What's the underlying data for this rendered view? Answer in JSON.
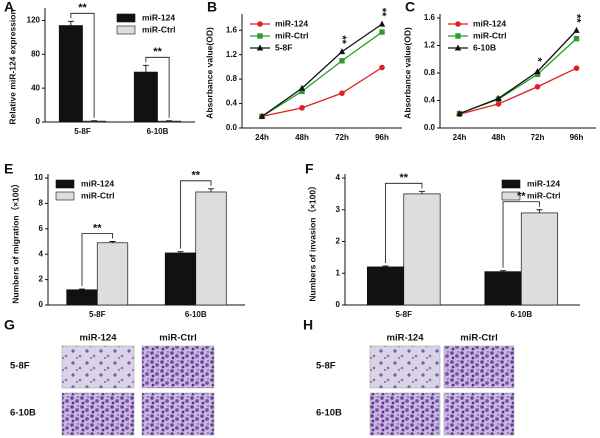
{
  "chart_data": [
    {
      "type": "bar",
      "label": "A",
      "ylabel": "Relative miR-124 expression",
      "categories": [
        "5-8F",
        "6-10B"
      ],
      "series": [
        {
          "name": "miR-124",
          "color": "#111111",
          "values": [
            114,
            59
          ],
          "errors": [
            5,
            8
          ]
        },
        {
          "name": "miR-Ctrl",
          "color": "#dddddd",
          "values": [
            1,
            1
          ],
          "errors": [
            0.5,
            0.5
          ]
        }
      ],
      "ylim": [
        0,
        130
      ],
      "yticks": [
        0,
        40,
        80,
        120
      ],
      "legend": "upper right",
      "annotations": [
        {
          "text": "**",
          "x": "5-8F"
        },
        {
          "text": "**",
          "x": "6-10B"
        }
      ]
    },
    {
      "type": "line",
      "label": "B",
      "ylabel": "Absorbance value(OD)",
      "categories": [
        "24h",
        "48h",
        "72h",
        "96h"
      ],
      "series": [
        {
          "name": "miR-124",
          "color": "#e02020",
          "marker": "circle",
          "values": [
            0.19,
            0.33,
            0.57,
            0.99
          ]
        },
        {
          "name": "miR-Ctrl",
          "color": "#2a9d2a",
          "marker": "square",
          "values": [
            0.19,
            0.6,
            1.1,
            1.57
          ]
        },
        {
          "name": "5-8F",
          "color": "#111111",
          "marker": "triangle",
          "values": [
            0.19,
            0.65,
            1.25,
            1.7
          ]
        }
      ],
      "ylim": [
        0,
        1.8
      ],
      "yticks": [
        {
          "value": 0,
          "label": "0.0"
        },
        0.4,
        0.8,
        1.2,
        1.6
      ],
      "legend": "upper left",
      "annotations": [
        {
          "text": "**",
          "x": "72h"
        },
        {
          "text": "**",
          "x": "96h"
        }
      ]
    },
    {
      "type": "line",
      "label": "C",
      "ylabel": "Absorbance value(OD)",
      "categories": [
        "24h",
        "48h",
        "72h",
        "96h"
      ],
      "series": [
        {
          "name": "miR-124",
          "color": "#e02020",
          "marker": "circle",
          "values": [
            0.2,
            0.35,
            0.6,
            0.87
          ]
        },
        {
          "name": "miR-Ctrl",
          "color": "#2a9d2a",
          "marker": "square",
          "values": [
            0.21,
            0.42,
            0.78,
            1.3
          ]
        },
        {
          "name": "6-10B",
          "color": "#111111",
          "marker": "triangle",
          "values": [
            0.21,
            0.43,
            0.82,
            1.42
          ]
        }
      ],
      "ylim": [
        0,
        1.6
      ],
      "yticks": [
        {
          "value": 0,
          "label": "0.0"
        },
        0.4,
        0.8,
        1.2,
        1.6
      ],
      "legend": "upper left",
      "annotations": [
        {
          "text": "*",
          "x": "72h"
        },
        {
          "text": "**",
          "x": "96h"
        }
      ]
    },
    {
      "type": "bar",
      "label": "E",
      "ylabel": "Numbers of migration（×100）",
      "categories": [
        "5-8F",
        "6-10B"
      ],
      "series": [
        {
          "name": "miR-124",
          "color": "#111111",
          "values": [
            1.2,
            4.1
          ],
          "errors": [
            0.05,
            0.1
          ]
        },
        {
          "name": "miR-Ctrl",
          "color": "#dddddd",
          "values": [
            4.9,
            8.9
          ],
          "errors": [
            0.1,
            0.25
          ]
        }
      ],
      "ylim": [
        0,
        10
      ],
      "yticks": [
        0,
        2,
        4,
        6,
        8,
        10
      ],
      "legend": "upper left",
      "annotations": [
        {
          "text": "**",
          "x": "5-8F"
        },
        {
          "text": "**",
          "x": "6-10B"
        }
      ]
    },
    {
      "type": "bar",
      "label": "F",
      "ylabel": "Numbers of invasion（×100）",
      "categories": [
        "5-8F",
        "6-10B"
      ],
      "series": [
        {
          "name": "miR-124",
          "color": "#111111",
          "values": [
            1.2,
            1.05
          ],
          "errors": [
            0.03,
            0.03
          ]
        },
        {
          "name": "miR-Ctrl",
          "color": "#dddddd",
          "values": [
            3.5,
            2.9
          ],
          "errors": [
            0.08,
            0.1
          ]
        }
      ],
      "ylim": [
        0,
        4
      ],
      "yticks": [
        0,
        1,
        2,
        3,
        4
      ],
      "legend": "upper right",
      "annotations": [
        {
          "text": "**",
          "x": "5-8F"
        },
        {
          "text": "**",
          "x": "6-10B"
        }
      ]
    }
  ],
  "images": [
    {
      "label": "G",
      "columns": [
        "miR-124",
        "miR-Ctrl"
      ],
      "rows": [
        "5-8F",
        "6-10B"
      ]
    },
    {
      "label": "H",
      "columns": [
        "miR-124",
        "miR-Ctrl"
      ],
      "rows": [
        "5-8F",
        "6-10B"
      ]
    }
  ]
}
